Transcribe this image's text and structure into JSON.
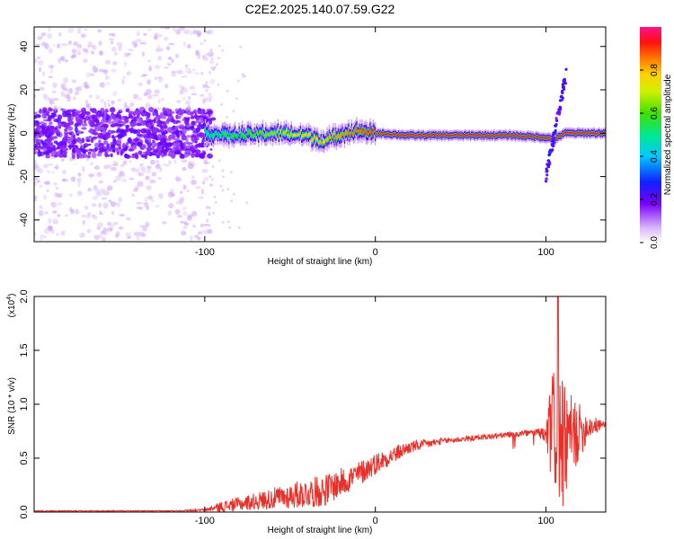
{
  "title": "C2E2.2025.140.07.59.G22",
  "chart_data": [
    {
      "type": "heatmap",
      "name": "spectrogram",
      "xlabel": "Height of straight line (km)",
      "ylabel": "Frequency (Hz)",
      "xlim": [
        -200,
        135
      ],
      "ylim": [
        -50,
        49
      ],
      "xticks": [
        -100,
        0,
        100
      ],
      "xtick_labels": [
        "-100",
        "0",
        "100"
      ],
      "yticks": [
        -40,
        -20,
        0,
        20,
        40
      ],
      "ytick_labels": [
        "-40",
        "-20",
        "0",
        "20",
        "40"
      ],
      "colorbar": {
        "label": "Normalized spectral amplitude",
        "range": [
          0,
          1
        ],
        "ticks": [
          0,
          0.2,
          0.4,
          0.6,
          0.8
        ],
        "tick_labels": [
          "0.0",
          "0.2",
          "0.4",
          "0.6",
          "0.8"
        ]
      },
      "ridge": {
        "x": [
          -200,
          -150,
          -100,
          -80,
          -60,
          -40,
          -30,
          -20,
          -10,
          0,
          20,
          40,
          60,
          80,
          100,
          105,
          110,
          120,
          135
        ],
        "y": [
          1,
          0,
          0,
          -1,
          0,
          -1,
          -4,
          0,
          1,
          0,
          -1,
          -1,
          -1,
          -1,
          -2,
          -3,
          0,
          0,
          0
        ]
      },
      "burst": {
        "x": [
          100,
          112
        ],
        "y": [
          -20,
          28
        ]
      }
    },
    {
      "type": "line",
      "name": "snr",
      "xlabel": "Height of straight line (km)",
      "ylabel": "SNR (10 * v/v)",
      "y_multiplier": "(x10",
      "y_multiplier_exp": "4",
      "y_multiplier_close": ")",
      "xlim": [
        -200,
        135
      ],
      "ylim": [
        0,
        2.0
      ],
      "xticks": [
        -100,
        0,
        100
      ],
      "xtick_labels": [
        "-100",
        "0",
        "100"
      ],
      "yticks": [
        0,
        0.5,
        1.0,
        1.5,
        2.0
      ],
      "ytick_labels": [
        "0.0",
        "0.5",
        "1.0",
        "1.5",
        "2.0"
      ],
      "color": "#e8302a",
      "trend": {
        "x": [
          -200,
          -120,
          -100,
          -90,
          -70,
          -50,
          -30,
          -10,
          0,
          20,
          40,
          60,
          80,
          95,
          100,
          105,
          110,
          115,
          120,
          125,
          130,
          135
        ],
        "y": [
          0.01,
          0.01,
          0.02,
          0.05,
          0.1,
          0.15,
          0.2,
          0.35,
          0.45,
          0.6,
          0.66,
          0.69,
          0.72,
          0.74,
          0.7,
          0.8,
          0.6,
          0.7,
          0.75,
          0.8,
          0.8,
          0.82
        ]
      },
      "noise": {
        "x": [
          -120,
          -100,
          -90,
          -70,
          -50,
          -30,
          -10,
          0,
          20,
          40,
          60,
          80,
          95,
          100,
          103,
          107,
          112,
          118,
          125,
          135
        ],
        "amp": [
          0.005,
          0.01,
          0.05,
          0.08,
          0.12,
          0.15,
          0.12,
          0.1,
          0.06,
          0.03,
          0.025,
          0.03,
          0.03,
          0.1,
          0.5,
          0.7,
          0.5,
          0.3,
          0.12,
          0.02
        ]
      },
      "peak": {
        "x": 107,
        "y": 2.0
      }
    }
  ]
}
